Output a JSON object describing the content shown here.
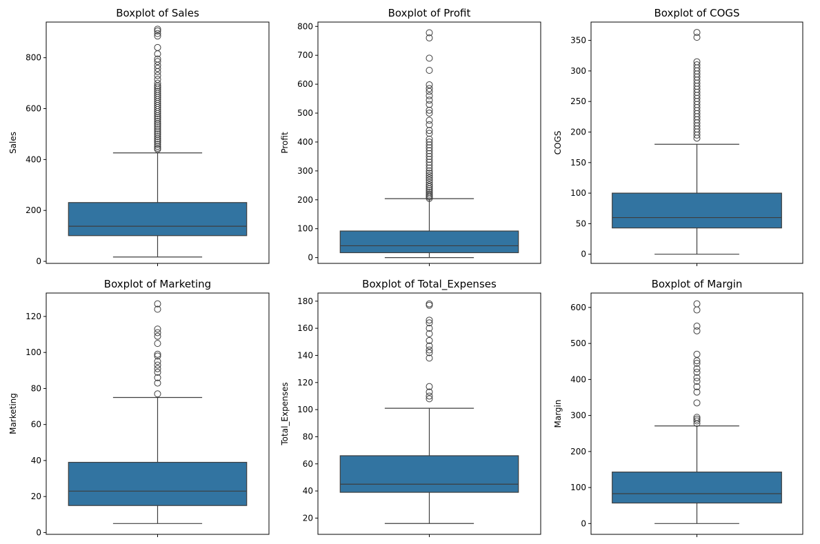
{
  "colors": {
    "box": "#3274a1",
    "line": "#3d3d3d",
    "frame": "#000000"
  },
  "chart_data": [
    {
      "type": "box",
      "title": "Boxplot of Sales",
      "ylabel": "Sales",
      "ylim": [
        -8,
        940
      ],
      "yticks": [
        0,
        200,
        400,
        600,
        800
      ],
      "box": {
        "whisker_low": 17,
        "q1": 101,
        "median": 138,
        "q3": 231,
        "whisker_high": 426
      },
      "outliers": [
        440,
        445,
        452,
        460,
        468,
        475,
        482,
        490,
        498,
        505,
        512,
        520,
        528,
        535,
        542,
        550,
        558,
        565,
        572,
        580,
        588,
        596,
        604,
        612,
        620,
        628,
        636,
        644,
        652,
        660,
        668,
        676,
        684,
        690,
        700,
        715,
        730,
        745,
        758,
        770,
        785,
        795,
        815,
        840,
        885,
        895,
        905,
        912
      ]
    },
    {
      "type": "box",
      "title": "Boxplot of Profit",
      "ylabel": "Profit",
      "ylim": [
        -20,
        815
      ],
      "yticks": [
        0,
        100,
        200,
        300,
        400,
        500,
        600,
        700,
        800
      ],
      "box": {
        "whisker_low": 0,
        "q1": 17,
        "median": 41,
        "q3": 92,
        "whisker_high": 204
      },
      "outliers": [
        205,
        210,
        215,
        220,
        226,
        232,
        238,
        245,
        252,
        260,
        268,
        276,
        284,
        292,
        300,
        310,
        320,
        330,
        340,
        350,
        360,
        370,
        380,
        390,
        400,
        410,
        430,
        440,
        460,
        475,
        500,
        510,
        530,
        545,
        560,
        575,
        585,
        598,
        648,
        690,
        760,
        778
      ]
    },
    {
      "type": "box",
      "title": "Boxplot of COGS",
      "ylabel": "COGS",
      "ylim": [
        -15,
        380
      ],
      "yticks": [
        0,
        50,
        100,
        150,
        200,
        250,
        300,
        350
      ],
      "box": {
        "whisker_low": 0,
        "q1": 43,
        "median": 60,
        "q3": 100,
        "whisker_high": 180
      },
      "outliers": [
        190,
        195,
        200,
        205,
        210,
        215,
        220,
        225,
        230,
        235,
        240,
        245,
        250,
        255,
        260,
        265,
        270,
        275,
        280,
        285,
        290,
        295,
        300,
        305,
        310,
        315,
        355,
        363
      ]
    },
    {
      "type": "box",
      "title": "Boxplot of Marketing",
      "ylabel": "Marketing",
      "ylim": [
        -1,
        133
      ],
      "yticks": [
        0,
        20,
        40,
        60,
        80,
        100,
        120
      ],
      "box": {
        "whisker_low": 5,
        "q1": 15,
        "median": 23,
        "q3": 39,
        "whisker_high": 75
      },
      "outliers": [
        77,
        83,
        86,
        89,
        91,
        93,
        95,
        98,
        99,
        105,
        109,
        111,
        113,
        124,
        127
      ]
    },
    {
      "type": "box",
      "title": "Boxplot of Total_Expenses",
      "ylabel": "Total_Expenses",
      "ylim": [
        8,
        186
      ],
      "yticks": [
        20,
        40,
        60,
        80,
        100,
        120,
        140,
        160,
        180
      ],
      "box": {
        "whisker_low": 16,
        "q1": 39,
        "median": 45,
        "q3": 66,
        "whisker_high": 101
      },
      "outliers": [
        108,
        110,
        113,
        117,
        138,
        142,
        144,
        147,
        151,
        156,
        160,
        164,
        166,
        177,
        178
      ]
    },
    {
      "type": "box",
      "title": "Boxplot of Margin",
      "ylabel": "Margin",
      "ylim": [
        -30,
        640
      ],
      "yticks": [
        0,
        100,
        200,
        300,
        400,
        500,
        600
      ],
      "box": {
        "whisker_low": 0,
        "q1": 57,
        "median": 83,
        "q3": 143,
        "whisker_high": 271
      },
      "outliers": [
        278,
        285,
        290,
        295,
        335,
        365,
        380,
        395,
        405,
        420,
        430,
        445,
        452,
        470,
        535,
        548,
        593,
        610
      ]
    }
  ]
}
